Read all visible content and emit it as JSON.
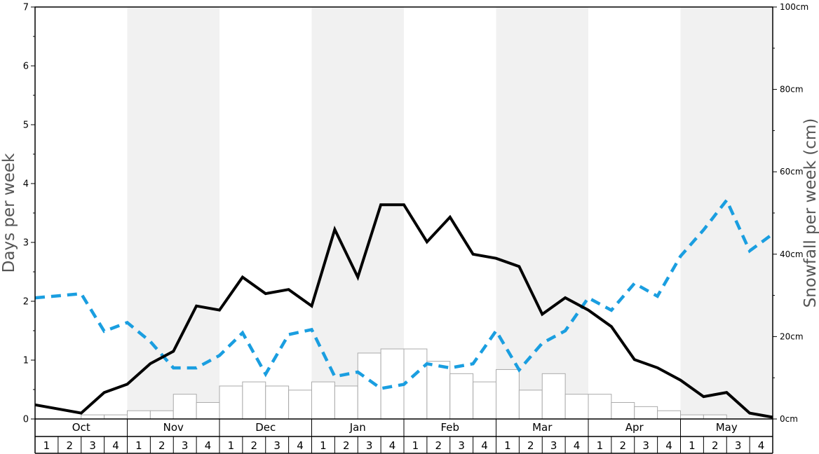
{
  "chart_data": {
    "type": "bar+line",
    "left_axis": {
      "label": "Days per week",
      "ylim": [
        0,
        7
      ],
      "ticks": [
        0,
        1,
        2,
        3,
        4,
        5,
        6,
        7
      ]
    },
    "right_axis": {
      "label": "Snowfall per week (cm)",
      "ylim": [
        0,
        100
      ],
      "ticks": [
        {
          "value": 0,
          "label": "0cm"
        },
        {
          "value": 20,
          "label": "20cm"
        },
        {
          "value": 40,
          "label": "40cm"
        },
        {
          "value": 60,
          "label": "60cm"
        },
        {
          "value": 80,
          "label": "80cm"
        },
        {
          "value": 100,
          "label": "100cm"
        }
      ]
    },
    "months": [
      "Oct",
      "Nov",
      "Dec",
      "Jan",
      "Feb",
      "Mar",
      "Apr",
      "May"
    ],
    "week_labels": [
      "1",
      "2",
      "3",
      "4"
    ],
    "shaded_months": [
      "Nov",
      "Jan",
      "Mar",
      "May"
    ],
    "series": [
      {
        "kind": "bar",
        "axis": "left",
        "values": [
          0,
          0,
          0.07,
          0.07,
          0.14,
          0.14,
          0.42,
          0.28,
          0.56,
          0.63,
          0.56,
          0.49,
          0.63,
          0.56,
          1.12,
          1.19,
          1.19,
          0.98,
          0.77,
          0.63,
          0.84,
          0.49,
          0.77,
          0.42,
          0.42,
          0.28,
          0.21,
          0.14,
          0.07,
          0.07,
          0,
          0
        ],
        "color": "#ffffff"
      },
      {
        "kind": "line",
        "style": "solid",
        "axis": "left",
        "values": [
          0.24,
          0.17,
          0.1,
          0.45,
          0.59,
          0.94,
          1.15,
          1.92,
          1.85,
          2.41,
          2.13,
          2.2,
          1.92,
          3.22,
          2.41,
          3.64,
          3.64,
          3.01,
          3.43,
          2.8,
          2.73,
          2.59,
          1.78,
          2.06,
          1.85,
          1.57,
          1.01,
          0.87,
          0.66,
          0.38,
          0.45,
          0.1,
          0.03
        ],
        "color": "#000000"
      },
      {
        "kind": "line",
        "style": "dashed",
        "axis": "right",
        "values": [
          29.4,
          29.9,
          30.4,
          21.3,
          23.4,
          18.8,
          12.4,
          12.4,
          15.4,
          20.9,
          10.9,
          20.5,
          21.7,
          10.3,
          11.4,
          7.4,
          8.4,
          13.4,
          12.4,
          13.4,
          21.4,
          11.9,
          18.4,
          21.4,
          29.4,
          26.4,
          32.9,
          29.8,
          39.5,
          45.9,
          53.1,
          40.8,
          44.9
        ],
        "color": "#1a9ee0"
      }
    ]
  }
}
